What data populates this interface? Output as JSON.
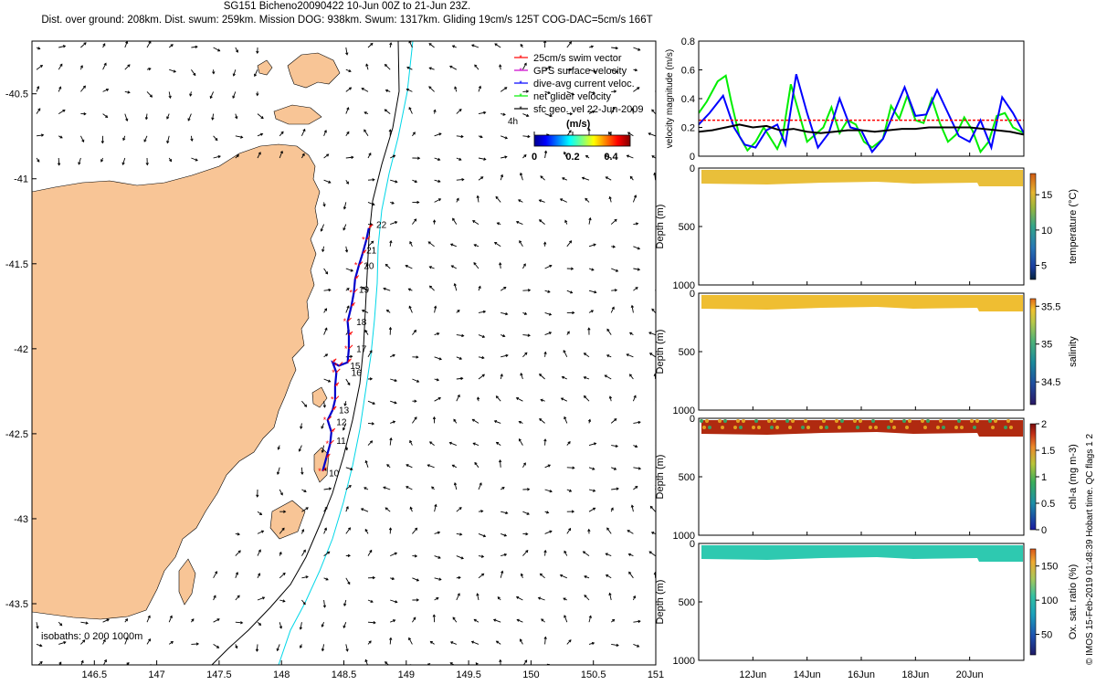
{
  "header": {
    "line1": "SG151 Bicheno20090422 10-Jun 00Z to 21-Jun 23Z.",
    "line2": "Dist. over ground: 208km. Dist. swum: 259km. Mission DOG: 938km. Swum: 1317km. Gliding 19cm/s 125T COG-DAC=5cm/s 166T"
  },
  "colors": {
    "land": "#f8c596",
    "isobath_200": "#000000",
    "isobath_1000": "#00d7e8",
    "track": "#0000cc",
    "swim_vector": "#ff0000",
    "gps_velocity": "#cc00cc",
    "dive_avg": "#0000ff",
    "net_glider": "#00ee00",
    "geo_vel": "#000000"
  },
  "chart_data": [
    {
      "type": "map",
      "xticks": [
        "146.5",
        "147",
        "147.5",
        "148",
        "148.5",
        "149",
        "149.5",
        "150",
        "150.5",
        "151"
      ],
      "yticks": [
        "-40.5",
        "-41",
        "-41.5",
        "-42",
        "-42.5",
        "-43",
        "-43.5"
      ],
      "xlim": [
        146.0,
        151.0
      ],
      "ylim": [
        -43.86,
        -40.19
      ],
      "isobath_note": "isobaths: 0   200  1000m",
      "legend": [
        {
          "label": "25cm/s swim vector",
          "color": "#ff0000"
        },
        {
          "label": "GPS surface velocity",
          "color": "#cc00cc"
        },
        {
          "label": "dive-avg current veloc.",
          "color": "#0000ff"
        },
        {
          "label": "net glider velocity",
          "color": "#00ee00"
        },
        {
          "label": "sfc geo. vel 22-Jun-2009",
          "color": "#000000"
        }
      ],
      "legend_legend_small": "4h",
      "colorbar": {
        "label": "(m/s)",
        "ticks": [
          "0",
          "0.2",
          "0.4"
        ],
        "range": [
          0,
          0.5
        ]
      },
      "track": [
        {
          "lon": 148.33,
          "lat": -42.72
        },
        {
          "lon": 148.36,
          "lat": -42.64
        },
        {
          "lon": 148.39,
          "lat": -42.56
        },
        {
          "lon": 148.4,
          "lat": -42.49
        },
        {
          "lon": 148.37,
          "lat": -42.42
        },
        {
          "lon": 148.41,
          "lat": -42.36
        },
        {
          "lon": 148.43,
          "lat": -42.3
        },
        {
          "lon": 148.43,
          "lat": -42.22
        },
        {
          "lon": 148.44,
          "lat": -42.14
        },
        {
          "lon": 148.41,
          "lat": -42.08
        },
        {
          "lon": 148.46,
          "lat": -42.1
        },
        {
          "lon": 148.53,
          "lat": -42.08
        },
        {
          "lon": 148.54,
          "lat": -42.0
        },
        {
          "lon": 148.54,
          "lat": -41.92
        },
        {
          "lon": 148.53,
          "lat": -41.84
        },
        {
          "lon": 148.56,
          "lat": -41.75
        },
        {
          "lon": 148.58,
          "lat": -41.67
        },
        {
          "lon": 148.59,
          "lat": -41.59
        },
        {
          "lon": 148.62,
          "lat": -41.51
        },
        {
          "lon": 148.65,
          "lat": -41.44
        },
        {
          "lon": 148.68,
          "lat": -41.36
        },
        {
          "lon": 148.7,
          "lat": -41.29
        }
      ],
      "day_labels": [
        {
          "text": "10",
          "lon": 148.38,
          "lat": -42.75
        },
        {
          "text": "11",
          "lon": 148.44,
          "lat": -42.56
        },
        {
          "text": "12",
          "lon": 148.44,
          "lat": -42.45
        },
        {
          "text": "13",
          "lon": 148.46,
          "lat": -42.38
        },
        {
          "text": "15",
          "lon": 148.55,
          "lat": -42.12
        },
        {
          "text": "16",
          "lon": 148.56,
          "lat": -42.16
        },
        {
          "text": "17",
          "lon": 148.6,
          "lat": -42.02
        },
        {
          "text": "18",
          "lon": 148.6,
          "lat": -41.86
        },
        {
          "text": "19",
          "lon": 148.62,
          "lat": -41.67
        },
        {
          "text": "20",
          "lon": 148.66,
          "lat": -41.53
        },
        {
          "text": "21",
          "lon": 148.68,
          "lat": -41.44
        },
        {
          "text": "22",
          "lon": 148.76,
          "lat": -41.29
        }
      ]
    },
    {
      "type": "line",
      "ylabel": "velocity magnitude (m/s)",
      "ylim": [
        0,
        0.8
      ],
      "yticks": [
        "0",
        "0.2",
        "0.4",
        "0.6",
        "0.8"
      ],
      "xlim": [
        10.0,
        22.0
      ],
      "series": [
        {
          "color": "#00ee00",
          "x": [
            10.0,
            10.3,
            10.7,
            11.0,
            11.2,
            11.5,
            11.8,
            12.1,
            12.4,
            12.6,
            12.9,
            13.1,
            13.4,
            13.7,
            14.0,
            14.3,
            14.6,
            14.9,
            15.2,
            15.5,
            15.8,
            16.1,
            16.4,
            16.8,
            17.1,
            17.4,
            17.7,
            18.0,
            18.3,
            18.6,
            18.9,
            19.2,
            19.5,
            19.8,
            20.1,
            20.4,
            20.7,
            21.0,
            21.3,
            21.6,
            22.0
          ],
          "y": [
            0.3,
            0.38,
            0.52,
            0.56,
            0.38,
            0.14,
            0.04,
            0.1,
            0.2,
            0.14,
            0.05,
            0.14,
            0.5,
            0.3,
            0.1,
            0.15,
            0.2,
            0.34,
            0.16,
            0.25,
            0.22,
            0.1,
            0.06,
            0.12,
            0.35,
            0.26,
            0.42,
            0.25,
            0.23,
            0.4,
            0.23,
            0.1,
            0.15,
            0.27,
            0.18,
            0.03,
            0.1,
            0.28,
            0.3,
            0.2,
            0.16
          ]
        },
        {
          "color": "#0000ff",
          "x": [
            10.0,
            10.4,
            10.9,
            11.3,
            11.7,
            12.1,
            12.5,
            12.9,
            13.2,
            13.6,
            14.0,
            14.4,
            14.8,
            15.2,
            15.6,
            16.0,
            16.4,
            16.8,
            17.2,
            17.6,
            18.0,
            18.4,
            18.8,
            19.2,
            19.6,
            20.0,
            20.4,
            20.8,
            21.2,
            21.6,
            22.0
          ],
          "y": [
            0.22,
            0.3,
            0.42,
            0.2,
            0.08,
            0.06,
            0.18,
            0.22,
            0.08,
            0.57,
            0.3,
            0.06,
            0.16,
            0.4,
            0.2,
            0.18,
            0.03,
            0.12,
            0.3,
            0.48,
            0.28,
            0.29,
            0.46,
            0.3,
            0.14,
            0.1,
            0.25,
            0.06,
            0.41,
            0.3,
            0.16
          ]
        },
        {
          "color": "#ff0000",
          "x": [
            10.0,
            22.0
          ],
          "y": [
            0.25,
            0.25
          ],
          "dashed": true
        },
        {
          "color": "#000000",
          "x": [
            10.0,
            10.5,
            11.0,
            11.5,
            12.0,
            12.5,
            13.0,
            13.5,
            14.0,
            14.5,
            15.0,
            15.5,
            16.0,
            16.5,
            17.0,
            17.5,
            18.0,
            18.5,
            19.0,
            19.5,
            20.0,
            20.5,
            21.0,
            21.5,
            22.0
          ],
          "y": [
            0.17,
            0.18,
            0.2,
            0.22,
            0.2,
            0.21,
            0.18,
            0.19,
            0.17,
            0.16,
            0.17,
            0.18,
            0.18,
            0.17,
            0.18,
            0.19,
            0.19,
            0.2,
            0.2,
            0.2,
            0.2,
            0.19,
            0.18,
            0.17,
            0.15
          ]
        }
      ]
    },
    {
      "type": "heatmap",
      "ylabel": "Depth (m)",
      "yticks": [
        "0",
        "500",
        "1000"
      ],
      "cbar_label": "temperature (°C)",
      "cbar_ticks": [
        "5",
        "10",
        "15"
      ],
      "cbar_range": [
        3,
        18
      ],
      "value": 14.5
    },
    {
      "type": "heatmap",
      "ylabel": "Depth (m)",
      "yticks": [
        "0",
        "500",
        "1000"
      ],
      "cbar_label": "salinity",
      "cbar_ticks": [
        "34.5",
        "35",
        "35.5"
      ],
      "cbar_range": [
        34.2,
        35.6
      ],
      "value": 35.28
    },
    {
      "type": "heatmap",
      "ylabel": "Depth (m)",
      "yticks": [
        "0",
        "500",
        "1000"
      ],
      "cbar_label": "chl-a (mg m-3)",
      "cbar_ticks": [
        "0",
        "0.5",
        "1",
        "1.5",
        "2"
      ],
      "cbar_range": [
        0,
        2
      ],
      "value": 1.9
    },
    {
      "type": "heatmap",
      "ylabel": "Depth (m)",
      "yticks": [
        "0",
        "500",
        "1000"
      ],
      "cbar_label": "Ox. sat. ratio (%)",
      "cbar_ticks": [
        "50",
        "100",
        "150"
      ],
      "cbar_range": [
        20,
        175
      ],
      "value": 105
    }
  ],
  "shared_xticks": [
    "12Jun",
    "14Jun",
    "16Jun",
    "18Jun",
    "20Jun"
  ],
  "footer": "© IMOS 15-Feb-2019 01:48:39 Hobart time. QC flags 1 2"
}
